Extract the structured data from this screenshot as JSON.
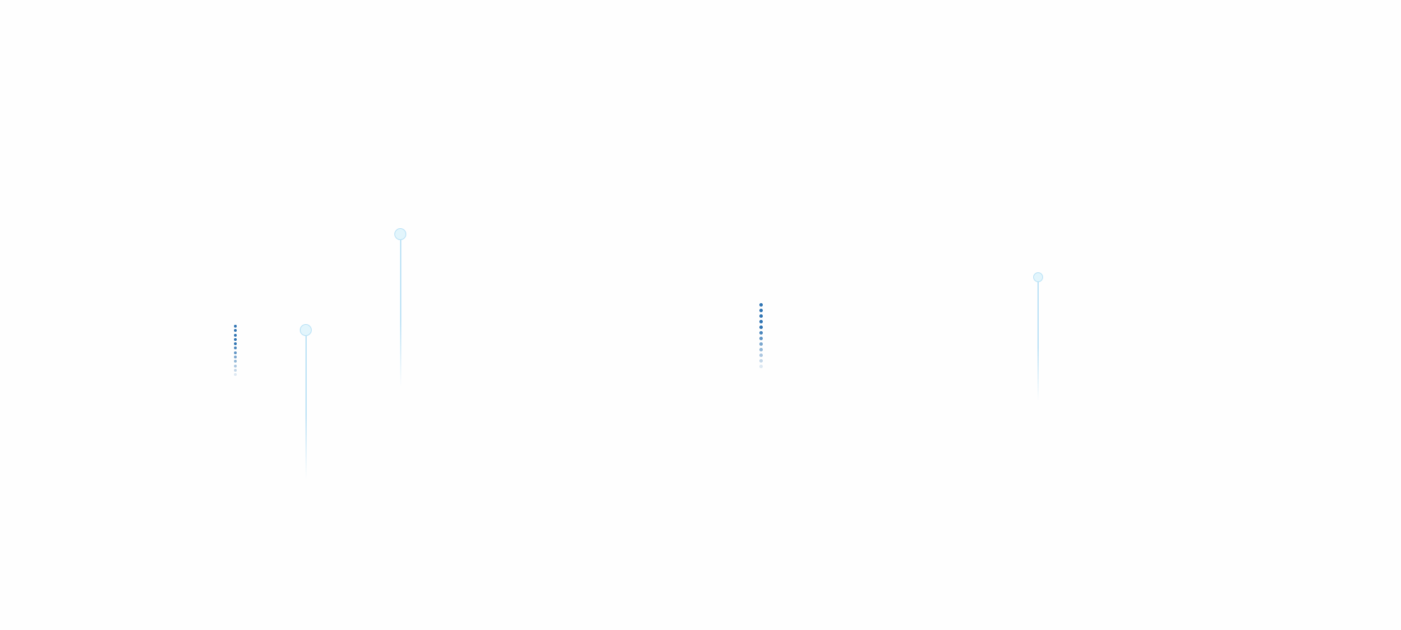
{
  "colors": {
    "dot_dark": "#2f74b3",
    "dot_light": "#e3f4fc",
    "pin_fill": "#e2f5fc",
    "pin_border": "#b5e0f5",
    "pin_line": "#bfe3f6"
  }
}
